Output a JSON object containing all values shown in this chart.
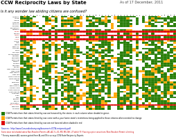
{
  "title": "CCW Reciprocity Laws by State",
  "subtitle": "As of 17 December, 2011",
  "question": "Is it any wonder law abiding citizens are confused?",
  "bg_color": "#ffffff",
  "states": [
    "Alabama",
    "Alaska",
    "Arizona",
    "Arkansas",
    "California",
    "Colorado",
    "Connecticut",
    "Delaware",
    "Florida",
    "Georgia",
    "Hawaii",
    "Idaho",
    "Illinois",
    "Indiana",
    "Iowa",
    "Kansas",
    "Kentucky",
    "Louisiana",
    "Maine",
    "Maryland",
    "Massachusetts",
    "Michigan",
    "Minnesota",
    "Mississippi",
    "Missouri",
    "Montana",
    "Nebraska",
    "Nevada",
    "New Hampshire",
    "New Jersey",
    "New Mexico",
    "New York",
    "North Carolina",
    "North Dakota",
    "Ohio",
    "Oklahoma",
    "Oregon",
    "Pennsylvania",
    "Rhode Island",
    "South Carolina",
    "South Dakota",
    "Tennessee",
    "Texas",
    "Utah",
    "Vermont",
    "Virginia",
    "Washington",
    "West Virginia",
    "Wisconsin",
    "Wyoming"
  ],
  "state_abbrevs": [
    "AL",
    "AK",
    "AZ",
    "AR",
    "CA",
    "CO",
    "CT",
    "DE",
    "FL",
    "GA",
    "HI",
    "ID",
    "IL",
    "IN",
    "IA",
    "KS",
    "KY",
    "LA",
    "ME",
    "MD",
    "MA",
    "MI",
    "MN",
    "MS",
    "MO",
    "MT",
    "NE",
    "NV",
    "NH",
    "NJ",
    "NM",
    "NY",
    "NC",
    "ND",
    "OH",
    "OK",
    "OR",
    "PA",
    "RI",
    "SC",
    "SD",
    "TN",
    "TX",
    "UT",
    "VT",
    "VA",
    "WA",
    "WV",
    "WI",
    "WY"
  ],
  "red_rows": [
    8,
    10,
    12,
    47
  ],
  "red_row_names": [
    "Florida",
    "Hawaii",
    "Illinois",
    "West Virginia"
  ],
  "green": "#217a00",
  "orange": "#FFA500",
  "red_row_color": "#dd0000",
  "white": "#ffffff",
  "source_text": "Sources:  http://www.Concealedcarry.org/documents/CCW-reciprocity.pdf",
  "note_text": "Some state red shaded states Non-Resident Permits: AK, AZ, FL, ID, MO, MS, NH, UT which Fl if having a prior convictions! Non-Resident Permit is limiting",
  "legend": [
    {
      "color": "#217a00",
      "text": "CCW Permits from that states listed by row are honored by the states in each column when shaded in green"
    },
    {
      "color": "#FFA500",
      "text": "CCW Permits from that states listed by row come with a your home state's restrictions being applied to those citizens when needed to change"
    },
    {
      "color": "#dd0000",
      "text": "CCW Permits from that states listed by row are not honored when shaded in red"
    }
  ],
  "note2": "* For any reasons ALL sources gained from AL and Ohio surveys CCW State Reciprocity Reports"
}
